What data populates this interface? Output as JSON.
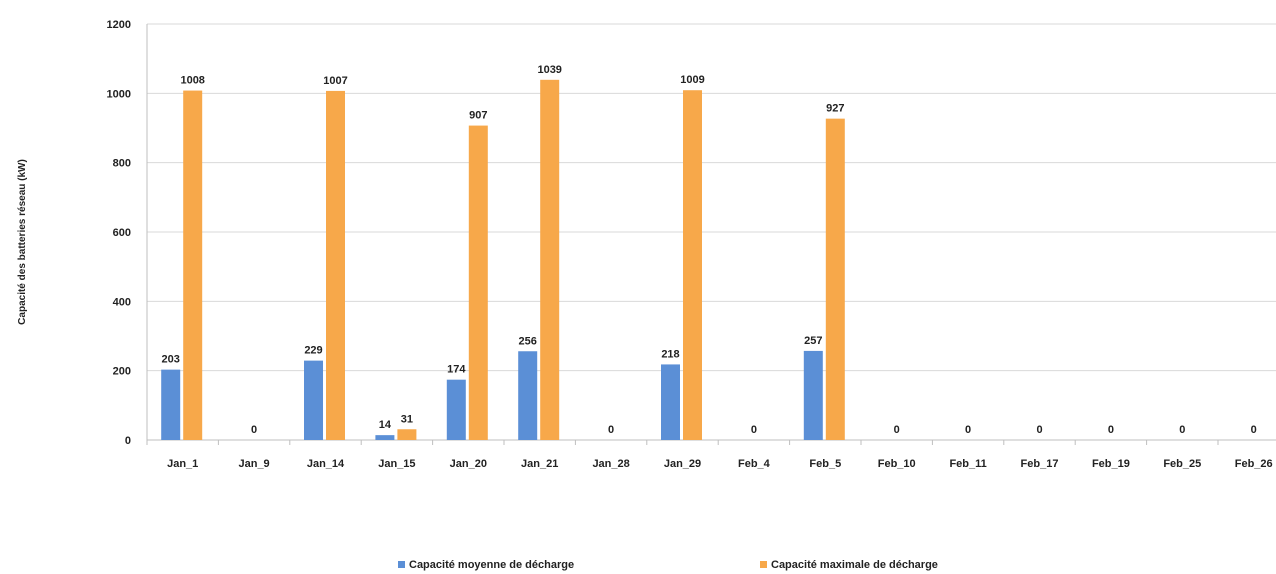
{
  "chart_data": {
    "type": "bar",
    "title": "",
    "xlabel": "",
    "ylabel": "Capacité des batteries réseau (kW)",
    "ylim": [
      0,
      1200
    ],
    "yticks": [
      0,
      200,
      400,
      600,
      800,
      1000,
      1200
    ],
    "grid": true,
    "legend_position": "bottom",
    "categories": [
      "Jan_1",
      "Jan_9",
      "Jan_14",
      "Jan_15",
      "Jan_20",
      "Jan_21",
      "Jan_28",
      "Jan_29",
      "Feb_4",
      "Feb_5",
      "Feb_10",
      "Feb_11",
      "Feb_17",
      "Feb_19",
      "Feb_25",
      "Feb_26"
    ],
    "series": [
      {
        "name": "Capacité moyenne de décharge",
        "color": "#5b8fd6",
        "values": [
          203,
          0,
          229,
          14,
          174,
          256,
          0,
          218,
          0,
          257,
          0,
          0,
          0,
          0,
          0,
          0
        ],
        "labels": [
          "203",
          "0",
          "229",
          "14",
          "174",
          "256",
          "0",
          "218",
          "0",
          "257",
          "0",
          "0",
          "0",
          "0",
          "0",
          "0"
        ]
      },
      {
        "name": "Capacité maximale de décharge",
        "color": "#f7a84a",
        "values": [
          1008,
          0,
          1007,
          31,
          907,
          1039,
          0,
          1009,
          0,
          927,
          0,
          0,
          0,
          0,
          0,
          0
        ],
        "labels": [
          "1008",
          "",
          "1007",
          "31",
          "907",
          "1039",
          "",
          "1009",
          "",
          "927",
          "",
          "",
          "",
          "",
          "",
          ""
        ]
      }
    ]
  }
}
